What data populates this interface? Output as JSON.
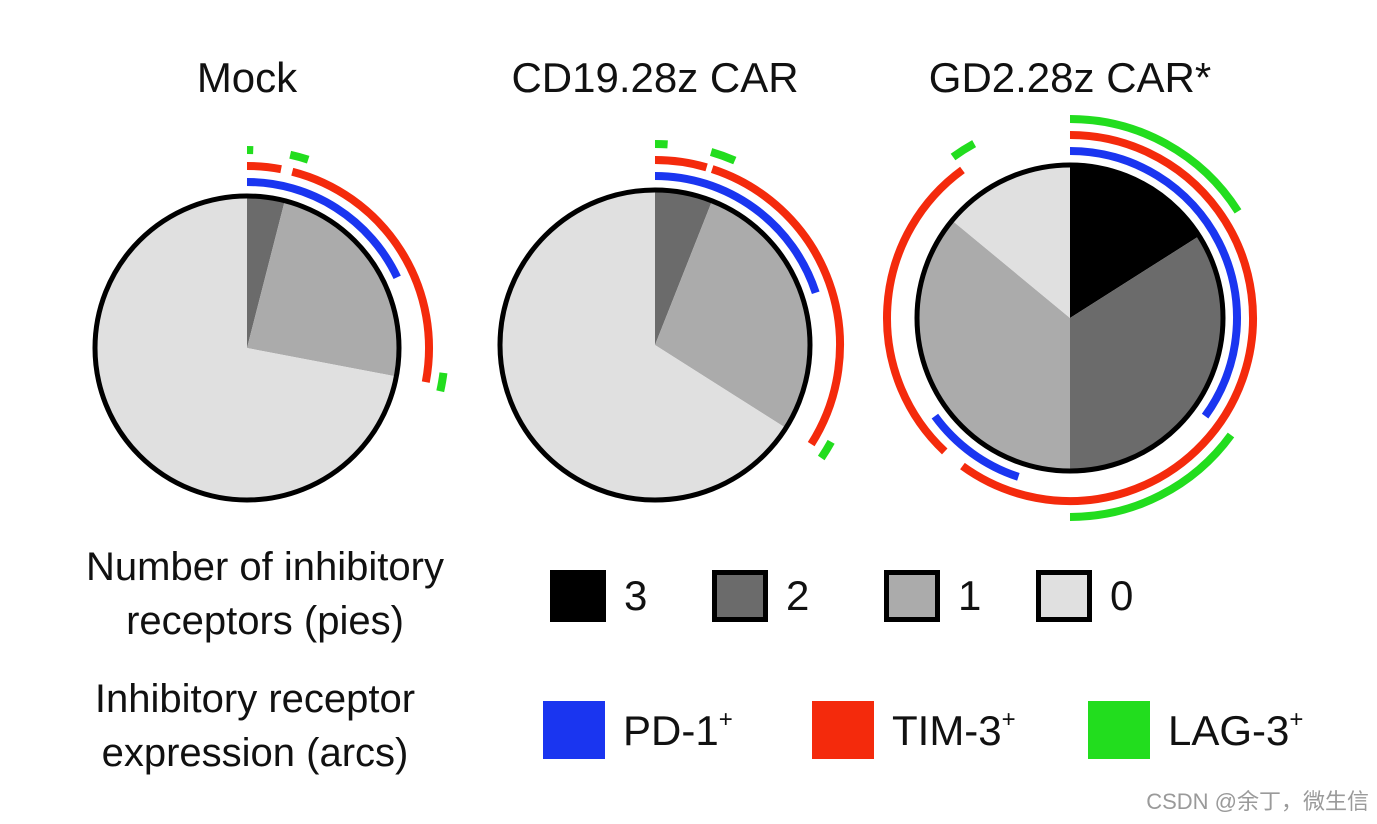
{
  "chart_data": {
    "type": "pie",
    "colors": {
      "pie_levels": {
        "3": "#000000",
        "2": "#6b6b6b",
        "1": "#ababab",
        "0": "#e0e0e0"
      },
      "receptors": {
        "PD-1": "#1a35f0",
        "TIM-3": "#f42a0c",
        "LAG-3": "#22dd1e"
      }
    },
    "panels": [
      {
        "title": "Mock",
        "slices": [
          {
            "inhibitory_receptors": 3,
            "fraction": 0.0
          },
          {
            "inhibitory_receptors": 2,
            "fraction": 0.04
          },
          {
            "inhibitory_receptors": 1,
            "fraction": 0.24
          },
          {
            "inhibitory_receptors": 0,
            "fraction": 0.72
          }
        ],
        "arcs": {
          "PD-1": [
            [
              0.0,
              0.18
            ]
          ],
          "TIM-3": [
            [
              0.0,
              0.03
            ],
            [
              0.04,
              0.28
            ]
          ],
          "LAG-3": [
            [
              0.0,
              0.005
            ],
            [
              0.035,
              0.05
            ],
            [
              0.27,
              0.285
            ]
          ]
        }
      },
      {
        "title": "CD19.28z CAR",
        "slices": [
          {
            "inhibitory_receptors": 3,
            "fraction": 0.0
          },
          {
            "inhibitory_receptors": 2,
            "fraction": 0.06
          },
          {
            "inhibitory_receptors": 1,
            "fraction": 0.28
          },
          {
            "inhibitory_receptors": 0,
            "fraction": 0.66
          }
        ],
        "arcs": {
          "PD-1": [
            [
              0.0,
              0.2
            ]
          ],
          "TIM-3": [
            [
              0.0,
              0.045
            ],
            [
              0.05,
              0.34
            ]
          ],
          "LAG-3": [
            [
              0.0,
              0.01
            ],
            [
              0.045,
              0.065
            ],
            [
              0.33,
              0.345
            ]
          ]
        }
      },
      {
        "title": "GD2.28z CAR*",
        "slices": [
          {
            "inhibitory_receptors": 3,
            "fraction": 0.16
          },
          {
            "inhibitory_receptors": 2,
            "fraction": 0.34
          },
          {
            "inhibitory_receptors": 1,
            "fraction": 0.36
          },
          {
            "inhibitory_receptors": 0,
            "fraction": 0.14
          }
        ],
        "arcs": {
          "PD-1": [
            [
              0.0,
              0.35
            ],
            [
              0.55,
              0.65
            ]
          ],
          "TIM-3": [
            [
              0.0,
              0.6
            ],
            [
              0.62,
              0.9
            ]
          ],
          "LAG-3": [
            [
              0.0,
              0.16
            ],
            [
              0.35,
              0.5
            ],
            [
              0.9,
              0.92
            ]
          ]
        }
      }
    ]
  },
  "legend": {
    "pies_heading": [
      "Number of inhibitory",
      "receptors (pies)"
    ],
    "pies_labels": [
      "3",
      "2",
      "1",
      "0"
    ],
    "arcs_heading": [
      "Inhibitory receptor",
      "expression (arcs)"
    ],
    "arcs_labels": [
      "PD-1",
      "TIM-3",
      "LAG-3"
    ],
    "arcs_sup": "+"
  },
  "watermark": "CSDN @余丁，微生信"
}
